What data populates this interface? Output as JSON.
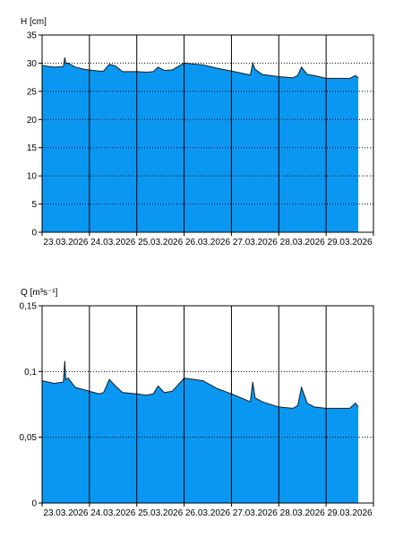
{
  "colors": {
    "fill": "#0a97f2",
    "line": "#1a1a1a",
    "grid": "#000000",
    "background": "#ffffff"
  },
  "chart_data": [
    {
      "type": "area",
      "ylabel": "H [cm]",
      "ylim": [
        0,
        35
      ],
      "y_ticks": [
        0,
        5,
        10,
        15,
        20,
        25,
        30,
        35
      ],
      "y_tick_labels": [
        "0",
        "5",
        "10",
        "15",
        "20",
        "25",
        "30",
        "35"
      ],
      "dotted_grid_y": [
        5,
        10,
        15,
        20,
        25,
        30
      ],
      "xlim": [
        0,
        7
      ],
      "x_ticks": [
        1,
        2,
        3,
        4,
        5,
        6
      ],
      "x_labels": [
        "23.03.2026",
        "24.03.2026",
        "25.03.2026",
        "26.03.2026",
        "27.03.2026",
        "28.03.2026",
        "29.03.2026"
      ],
      "grid": true,
      "series": [
        {
          "x": [
            0.0,
            0.25,
            0.45,
            0.48,
            0.5,
            0.55,
            0.7,
            0.9,
            1.2,
            1.3,
            1.42,
            1.55,
            1.7,
            2.0,
            2.2,
            2.35,
            2.45,
            2.58,
            2.75,
            3.0,
            3.4,
            3.7,
            4.0,
            4.4,
            4.45,
            4.5,
            4.65,
            5.0,
            5.3,
            5.4,
            5.48,
            5.6,
            5.75,
            6.0,
            6.5,
            6.62,
            6.68
          ],
          "y": [
            29.6,
            29.3,
            29.4,
            31.0,
            29.9,
            30.0,
            29.3,
            28.9,
            28.6,
            28.6,
            29.8,
            29.5,
            28.5,
            28.5,
            28.4,
            28.5,
            29.3,
            28.7,
            28.8,
            30.0,
            29.7,
            29.1,
            28.6,
            27.9,
            30.0,
            28.9,
            28.0,
            27.6,
            27.4,
            27.8,
            29.3,
            28.0,
            27.8,
            27.3,
            27.3,
            27.8,
            27.4
          ]
        }
      ]
    },
    {
      "type": "area",
      "ylabel": "Q [m³s⁻¹]",
      "ylim": [
        0,
        0.15
      ],
      "y_ticks": [
        0,
        0.05,
        0.1,
        0.15
      ],
      "y_tick_labels": [
        "0",
        "0,05",
        "0,1",
        "0,15"
      ],
      "dotted_grid_y": [
        0.05,
        0.1
      ],
      "xlim": [
        0,
        7
      ],
      "x_ticks": [
        1,
        2,
        3,
        4,
        5,
        6
      ],
      "x_labels": [
        "23.03.2026",
        "24.03.2026",
        "25.03.2026",
        "26.03.2026",
        "27.03.2026",
        "28.03.2026",
        "29.03.2026"
      ],
      "grid": true,
      "series": [
        {
          "x": [
            0.0,
            0.25,
            0.45,
            0.48,
            0.5,
            0.55,
            0.7,
            0.9,
            1.2,
            1.3,
            1.42,
            1.55,
            1.7,
            2.0,
            2.2,
            2.35,
            2.45,
            2.58,
            2.75,
            3.0,
            3.4,
            3.7,
            4.0,
            4.4,
            4.45,
            4.5,
            4.65,
            5.0,
            5.3,
            5.4,
            5.48,
            5.6,
            5.75,
            6.0,
            6.5,
            6.62,
            6.68
          ],
          "y": [
            0.093,
            0.091,
            0.092,
            0.108,
            0.094,
            0.095,
            0.088,
            0.086,
            0.083,
            0.084,
            0.094,
            0.089,
            0.084,
            0.083,
            0.082,
            0.083,
            0.089,
            0.084,
            0.085,
            0.095,
            0.093,
            0.087,
            0.083,
            0.077,
            0.092,
            0.08,
            0.077,
            0.073,
            0.072,
            0.074,
            0.088,
            0.076,
            0.073,
            0.072,
            0.072,
            0.076,
            0.073
          ]
        }
      ]
    }
  ]
}
